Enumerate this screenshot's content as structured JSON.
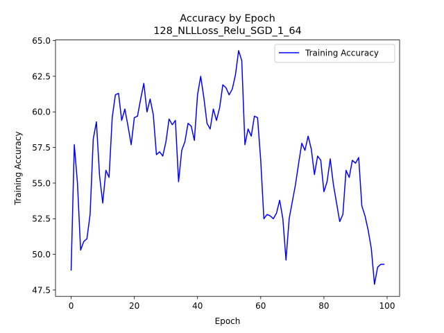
{
  "chart_data": {
    "type": "line",
    "title": "Accuracy by Epoch",
    "subtitle": "128_NLLLoss_Relu_SGD_1_64",
    "xlabel": "Epoch",
    "ylabel": "Training Accuracy",
    "xlim": [
      -4.95,
      103.95
    ],
    "ylim": [
      47.05,
      65.05
    ],
    "xticks": [
      0,
      20,
      40,
      60,
      80,
      100
    ],
    "xtick_labels": [
      "0",
      "20",
      "40",
      "60",
      "80",
      "100"
    ],
    "yticks": [
      47.5,
      50.0,
      52.5,
      55.0,
      57.5,
      60.0,
      62.5,
      65.0
    ],
    "ytick_labels": [
      "47.5",
      "50.0",
      "52.5",
      "55.0",
      "57.5",
      "60.0",
      "62.5",
      "65.0"
    ],
    "grid": false,
    "legend_position": "top-right",
    "series": [
      {
        "name": "Training Accuracy",
        "color": "#0000ff",
        "x": [
          0,
          1,
          2,
          3,
          4,
          5,
          6,
          7,
          8,
          9,
          10,
          11,
          12,
          13,
          14,
          15,
          16,
          17,
          18,
          19,
          20,
          21,
          22,
          23,
          24,
          25,
          26,
          27,
          28,
          29,
          30,
          31,
          32,
          33,
          34,
          35,
          36,
          37,
          38,
          39,
          40,
          41,
          42,
          43,
          44,
          45,
          46,
          47,
          48,
          49,
          50,
          51,
          52,
          53,
          54,
          55,
          56,
          57,
          58,
          59,
          60,
          61,
          62,
          63,
          64,
          65,
          66,
          67,
          68,
          69,
          70,
          71,
          72,
          73,
          74,
          75,
          76,
          77,
          78,
          79,
          80,
          81,
          82,
          83,
          84,
          85,
          86,
          87,
          88,
          89,
          90,
          91,
          92,
          93,
          94,
          95,
          96,
          97,
          98,
          99
        ],
        "values": [
          48.9,
          57.7,
          55.0,
          50.3,
          50.9,
          51.1,
          52.8,
          58.1,
          59.3,
          55.5,
          53.6,
          55.9,
          55.4,
          59.6,
          61.2,
          61.3,
          59.4,
          60.2,
          59.0,
          57.7,
          59.6,
          59.7,
          60.9,
          62.0,
          60.0,
          60.9,
          59.8,
          57.0,
          57.2,
          56.9,
          57.9,
          59.5,
          59.1,
          59.4,
          55.1,
          57.3,
          57.9,
          59.2,
          59.0,
          58.0,
          61.2,
          62.5,
          61.0,
          59.2,
          58.8,
          60.2,
          59.4,
          60.3,
          61.9,
          61.7,
          61.2,
          61.6,
          62.6,
          64.3,
          63.6,
          57.7,
          58.8,
          58.3,
          59.7,
          59.6,
          56.6,
          52.5,
          52.8,
          52.7,
          52.5,
          52.9,
          53.8,
          52.5,
          49.6,
          52.5,
          53.7,
          54.9,
          56.4,
          57.8,
          57.3,
          58.3,
          57.4,
          55.6,
          56.9,
          56.6,
          54.4,
          55.1,
          56.7,
          54.9,
          53.6,
          52.3,
          52.8,
          55.9,
          55.4,
          56.6,
          56.4,
          56.8,
          53.4,
          52.7,
          51.7,
          50.4,
          47.9,
          49.1,
          49.3,
          49.3
        ]
      }
    ]
  }
}
